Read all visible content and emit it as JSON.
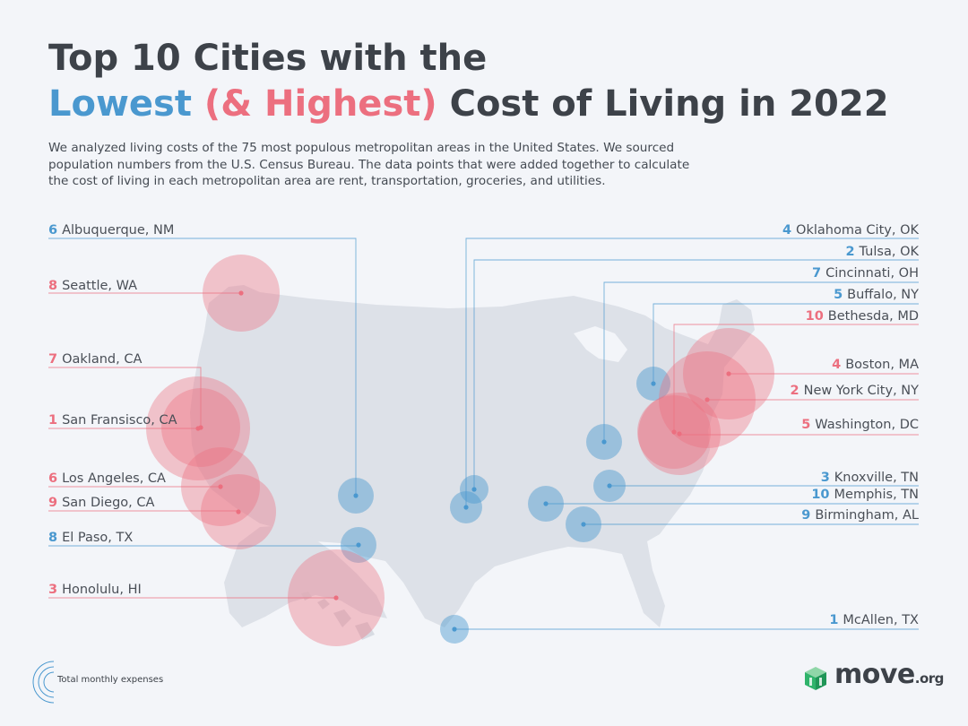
{
  "title": {
    "line1": "Top 10 Cities with the",
    "lowest": "Lowest",
    "highest": "(& Highest)",
    "rest": "Cost of Living in 2022"
  },
  "intro": "We analyzed living costs of the 75 most populous metropolitan areas in the United States. We sourced population numbers from the U.S. Census Bureau. The data points that were added together to calculate the cost of living in each metropolitan area are rent, transportation, groceries, and utilities.",
  "colors": {
    "low": "#4a98cf",
    "high": "#ec6f7f",
    "land": "#dde1e8",
    "background": "#f3f5f9"
  },
  "low_cost": [
    {
      "rank": "1",
      "city": "McAllen, TX"
    },
    {
      "rank": "2",
      "city": "Tulsa, OK"
    },
    {
      "rank": "3",
      "city": "Knoxville, TN"
    },
    {
      "rank": "4",
      "city": "Oklahoma City, OK"
    },
    {
      "rank": "5",
      "city": "Buffalo, NY"
    },
    {
      "rank": "6",
      "city": "Albuquerque, NM"
    },
    {
      "rank": "7",
      "city": "Cincinnati, OH"
    },
    {
      "rank": "8",
      "city": "El Paso, TX"
    },
    {
      "rank": "9",
      "city": "Birmingham, AL"
    },
    {
      "rank": "10",
      "city": "Memphis, TN"
    }
  ],
  "high_cost": [
    {
      "rank": "1",
      "city": "San Fransisco, CA"
    },
    {
      "rank": "2",
      "city": "New York City, NY"
    },
    {
      "rank": "3",
      "city": "Honolulu, HI"
    },
    {
      "rank": "4",
      "city": "Boston, MA"
    },
    {
      "rank": "5",
      "city": "Washington, DC"
    },
    {
      "rank": "6",
      "city": "Los Angeles, CA"
    },
    {
      "rank": "7",
      "city": "Oakland, CA"
    },
    {
      "rank": "8",
      "city": "Seattle, WA"
    },
    {
      "rank": "9",
      "city": "San Diego, CA"
    },
    {
      "rank": "10",
      "city": "Bethesda, MD"
    }
  ],
  "legend": {
    "label": "Total monthly expenses",
    "icon": "concentric-circles-icon"
  },
  "brand": {
    "name": "move",
    "suffix": ".org",
    "icon": "move-logo-icon"
  }
}
